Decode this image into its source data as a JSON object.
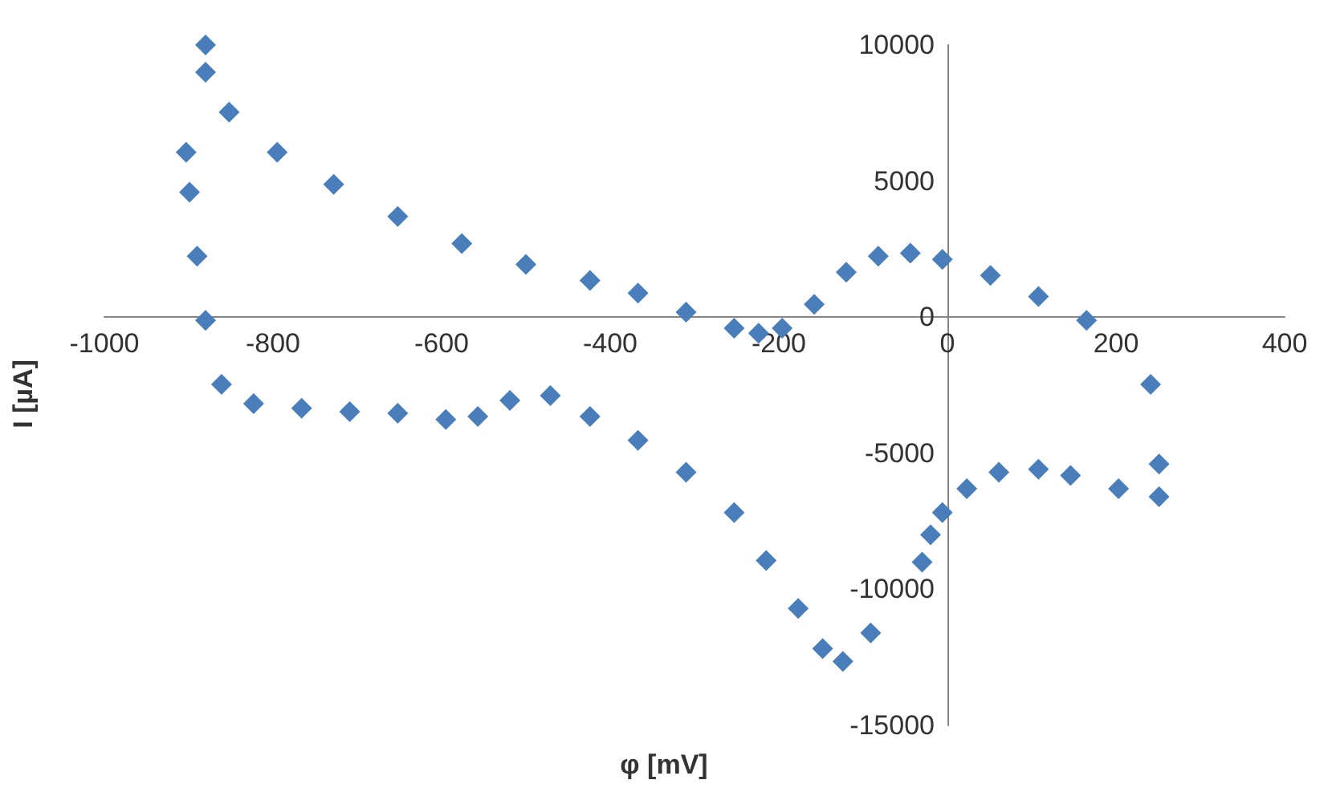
{
  "chart_data": {
    "type": "scatter",
    "xlabel": "φ [mV]",
    "ylabel": "I [µA]",
    "x": [
      -880,
      -880,
      -852,
      -795,
      -728,
      -652,
      -576,
      -500,
      -424,
      -367,
      -310,
      -253,
      -224,
      -196,
      -158,
      -120,
      -82,
      -44,
      -6,
      51,
      108,
      165,
      241,
      251,
      251,
      203,
      146,
      108,
      61,
      23,
      -6,
      -20,
      -30,
      -91,
      -124,
      -148,
      -177,
      -215,
      -253,
      -310,
      -367,
      -424,
      -471,
      -519,
      -557,
      -595,
      -652,
      -709,
      -766,
      -823,
      -861,
      -880,
      -890,
      -899,
      -903
    ],
    "values": [
      10000,
      9000,
      7530,
      6060,
      4880,
      3700,
      2700,
      1940,
      1350,
      880,
      180,
      -410,
      -590,
      -410,
      470,
      1650,
      2240,
      2350,
      2120,
      1530,
      760,
      -120,
      -2470,
      -5400,
      -6600,
      -6300,
      -5820,
      -5590,
      -5700,
      -6300,
      -7180,
      -8000,
      -9000,
      -11600,
      -12650,
      -12180,
      -10700,
      -8940,
      -7180,
      -5700,
      -4530,
      -3650,
      -2880,
      -3060,
      -3650,
      -3760,
      -3530,
      -3470,
      -3350,
      -3180,
      -2470,
      -120,
      2240,
      4590,
      6060
    ],
    "color": "#4a7ebb",
    "marker": "diamond",
    "grid": false,
    "xlim": [
      -1000,
      400
    ],
    "xticks": [
      -1000,
      -800,
      -600,
      -400,
      -200,
      0,
      200,
      400
    ],
    "ylim": [
      -15000,
      10000
    ],
    "yticks": [
      -15000,
      -10000,
      -5000,
      0,
      5000,
      10000
    ]
  }
}
